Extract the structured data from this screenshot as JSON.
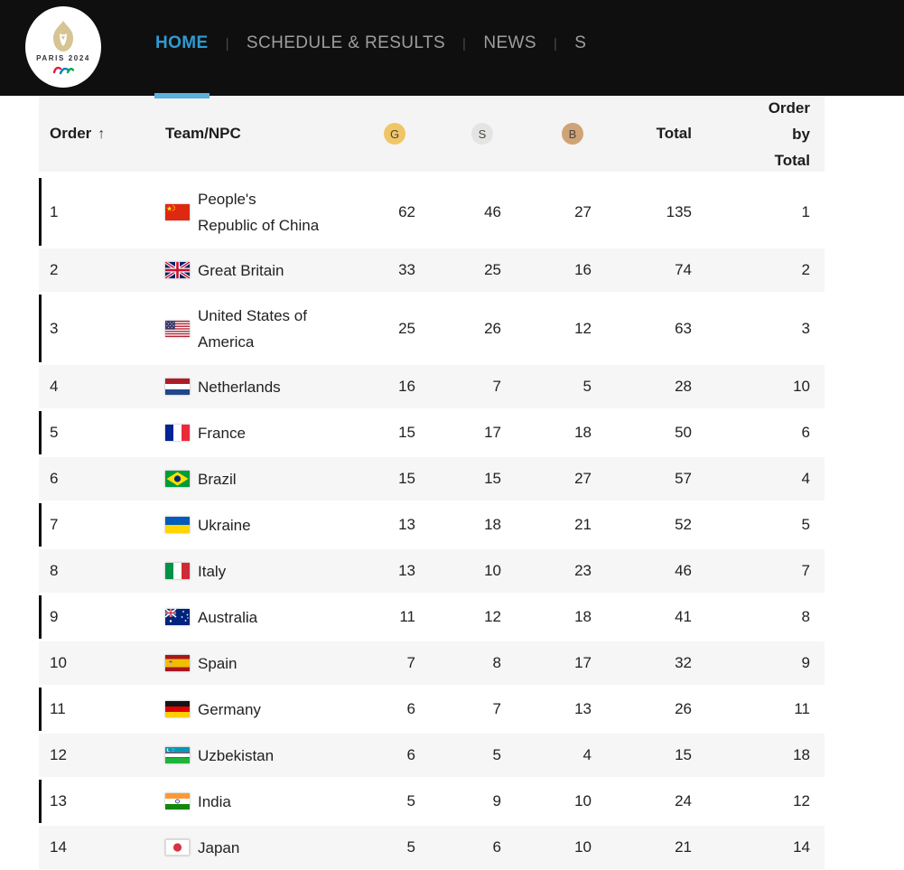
{
  "colors": {
    "accent": "#2f9ad2",
    "underline": "#5ab1dd",
    "gold": "#f1c566",
    "silver": "#e4e4e4",
    "bronze": "#cfa377"
  },
  "nav": {
    "separator": "|",
    "items": [
      {
        "label": "HOME",
        "active": true
      },
      {
        "label": "SCHEDULE & RESULTS",
        "active": false
      },
      {
        "label": "NEWS",
        "active": false
      },
      {
        "label": "S",
        "active": false
      }
    ]
  },
  "logo": {
    "text": "PARIS 2024"
  },
  "table": {
    "headers": {
      "order": "Order",
      "sort_icon": "↑",
      "team": "Team/NPC",
      "gold": "G",
      "silver": "S",
      "bronze": "B",
      "total": "Total",
      "order_by_total": "Order by Total"
    },
    "rows": [
      {
        "order": 1,
        "team": "People's\nRepublic of China",
        "flag": "cn",
        "gold": 62,
        "silver": 46,
        "bronze": 27,
        "total": 135,
        "order_by_total": 1
      },
      {
        "order": 2,
        "team": "Great Britain",
        "flag": "gb",
        "gold": 33,
        "silver": 25,
        "bronze": 16,
        "total": 74,
        "order_by_total": 2
      },
      {
        "order": 3,
        "team": "United States of\nAmerica",
        "flag": "us",
        "gold": 25,
        "silver": 26,
        "bronze": 12,
        "total": 63,
        "order_by_total": 3
      },
      {
        "order": 4,
        "team": "Netherlands",
        "flag": "nl",
        "gold": 16,
        "silver": 7,
        "bronze": 5,
        "total": 28,
        "order_by_total": 10
      },
      {
        "order": 5,
        "team": "France",
        "flag": "fr",
        "gold": 15,
        "silver": 17,
        "bronze": 18,
        "total": 50,
        "order_by_total": 6
      },
      {
        "order": 6,
        "team": "Brazil",
        "flag": "br",
        "gold": 15,
        "silver": 15,
        "bronze": 27,
        "total": 57,
        "order_by_total": 4
      },
      {
        "order": 7,
        "team": "Ukraine",
        "flag": "ua",
        "gold": 13,
        "silver": 18,
        "bronze": 21,
        "total": 52,
        "order_by_total": 5
      },
      {
        "order": 8,
        "team": "Italy",
        "flag": "it",
        "gold": 13,
        "silver": 10,
        "bronze": 23,
        "total": 46,
        "order_by_total": 7
      },
      {
        "order": 9,
        "team": "Australia",
        "flag": "au",
        "gold": 11,
        "silver": 12,
        "bronze": 18,
        "total": 41,
        "order_by_total": 8
      },
      {
        "order": 10,
        "team": "Spain",
        "flag": "es",
        "gold": 7,
        "silver": 8,
        "bronze": 17,
        "total": 32,
        "order_by_total": 9
      },
      {
        "order": 11,
        "team": "Germany",
        "flag": "de",
        "gold": 6,
        "silver": 7,
        "bronze": 13,
        "total": 26,
        "order_by_total": 11
      },
      {
        "order": 12,
        "team": "Uzbekistan",
        "flag": "uz",
        "gold": 6,
        "silver": 5,
        "bronze": 4,
        "total": 15,
        "order_by_total": 18
      },
      {
        "order": 13,
        "team": "India",
        "flag": "in",
        "gold": 5,
        "silver": 9,
        "bronze": 10,
        "total": 24,
        "order_by_total": 12
      },
      {
        "order": 14,
        "team": "Japan",
        "flag": "jp",
        "gold": 5,
        "silver": 6,
        "bronze": 10,
        "total": 21,
        "order_by_total": 14
      }
    ]
  }
}
